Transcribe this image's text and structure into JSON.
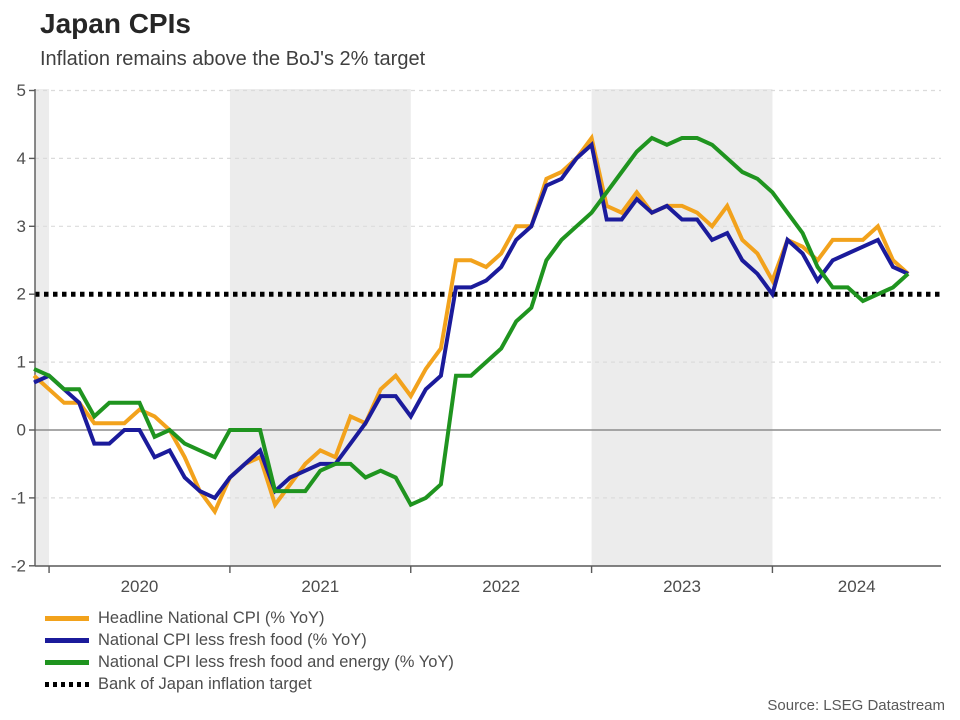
{
  "header": {
    "title": "Japan CPIs",
    "subtitle": "Inflation remains above the BoJ's 2% target"
  },
  "source": "Source: LSEG Datastream",
  "palette": {
    "headline_orange": "#F2A21C",
    "core_navy": "#1B1B9B",
    "corecore_green": "#1F941F",
    "target_black": "#000000",
    "shaded_band": "#ECECEC",
    "gridline": "#DBDBDB",
    "zero_line": "#8C8C8C",
    "axis_line": "#595959",
    "tick_text": "#4d4d4d"
  },
  "chart_data": {
    "type": "line",
    "title": "Japan CPIs",
    "subtitle": "Inflation remains above the BoJ's 2% target",
    "ylabel": "",
    "xlabel": "",
    "ylim": [
      -2,
      5
    ],
    "yticks": [
      -2,
      -1,
      0,
      1,
      2,
      3,
      4,
      5
    ],
    "grid": true,
    "legend_position": "bottom-left",
    "x": [
      "2019-12",
      "2020-01",
      "2020-02",
      "2020-03",
      "2020-04",
      "2020-05",
      "2020-06",
      "2020-07",
      "2020-08",
      "2020-09",
      "2020-10",
      "2020-11",
      "2020-12",
      "2021-01",
      "2021-02",
      "2021-03",
      "2021-04",
      "2021-05",
      "2021-06",
      "2021-07",
      "2021-08",
      "2021-09",
      "2021-10",
      "2021-11",
      "2021-12",
      "2022-01",
      "2022-02",
      "2022-03",
      "2022-04",
      "2022-05",
      "2022-06",
      "2022-07",
      "2022-08",
      "2022-09",
      "2022-10",
      "2022-11",
      "2022-12",
      "2023-01",
      "2023-02",
      "2023-03",
      "2023-04",
      "2023-05",
      "2023-06",
      "2023-07",
      "2023-08",
      "2023-09",
      "2023-10",
      "2023-11",
      "2023-12",
      "2024-01",
      "2024-02",
      "2024-03",
      "2024-04",
      "2024-05",
      "2024-06",
      "2024-07",
      "2024-08",
      "2024-09",
      "2024-10"
    ],
    "xticks_years": [
      2020,
      2021,
      2022,
      2023,
      2024
    ],
    "shaded_periods": [
      {
        "from": "2019-12",
        "to": "2020-01"
      },
      {
        "from": "2021-01",
        "to": "2022-01"
      },
      {
        "from": "2023-01",
        "to": "2024-01"
      }
    ],
    "series": [
      {
        "id": "headline",
        "name": "Headline National CPI (% YoY)",
        "color": "#F2A21C",
        "values": [
          0.8,
          0.6,
          0.4,
          0.4,
          0.1,
          0.1,
          0.1,
          0.3,
          0.2,
          0.0,
          -0.4,
          -0.9,
          -1.2,
          -0.7,
          -0.5,
          -0.4,
          -1.1,
          -0.8,
          -0.5,
          -0.3,
          -0.4,
          0.2,
          0.1,
          0.6,
          0.8,
          0.5,
          0.9,
          1.2,
          2.5,
          2.5,
          2.4,
          2.6,
          3.0,
          3.0,
          3.7,
          3.8,
          4.0,
          4.3,
          3.3,
          3.2,
          3.5,
          3.2,
          3.3,
          3.3,
          3.2,
          3.0,
          3.3,
          2.8,
          2.6,
          2.2,
          2.8,
          2.7,
          2.5,
          2.8,
          2.8,
          2.8,
          3.0,
          2.5,
          2.3
        ]
      },
      {
        "id": "core",
        "name": "National CPI less fresh food (% YoY)",
        "color": "#1B1B9B",
        "values": [
          0.7,
          0.8,
          0.6,
          0.4,
          -0.2,
          -0.2,
          0.0,
          0.0,
          -0.4,
          -0.3,
          -0.7,
          -0.9,
          -1.0,
          -0.7,
          -0.5,
          -0.3,
          -0.9,
          -0.7,
          -0.6,
          -0.5,
          -0.5,
          -0.2,
          0.1,
          0.5,
          0.5,
          0.2,
          0.6,
          0.8,
          2.1,
          2.1,
          2.2,
          2.4,
          2.8,
          3.0,
          3.6,
          3.7,
          4.0,
          4.2,
          3.1,
          3.1,
          3.4,
          3.2,
          3.3,
          3.1,
          3.1,
          2.8,
          2.9,
          2.5,
          2.3,
          2.0,
          2.8,
          2.6,
          2.2,
          2.5,
          2.6,
          2.7,
          2.8,
          2.4,
          2.3
        ]
      },
      {
        "id": "corecore",
        "name": "National CPI less fresh food and energy (% YoY)",
        "color": "#1F941F",
        "values": [
          0.9,
          0.8,
          0.6,
          0.6,
          0.2,
          0.4,
          0.4,
          0.4,
          -0.1,
          0.0,
          -0.2,
          -0.3,
          -0.4,
          0.0,
          0.0,
          0.0,
          -0.9,
          -0.9,
          -0.9,
          -0.6,
          -0.5,
          -0.5,
          -0.7,
          -0.6,
          -0.7,
          -1.1,
          -1.0,
          -0.8,
          0.8,
          0.8,
          1.0,
          1.2,
          1.6,
          1.8,
          2.5,
          2.8,
          3.0,
          3.2,
          3.5,
          3.8,
          4.1,
          4.3,
          4.2,
          4.3,
          4.3,
          4.2,
          4.0,
          3.8,
          3.7,
          3.5,
          3.2,
          2.9,
          2.4,
          2.1,
          2.1,
          1.9,
          2.0,
          2.1,
          2.3
        ]
      }
    ],
    "target": {
      "label": "Bank of Japan inflation target",
      "value": 2,
      "color": "#000000",
      "style": "dotted"
    }
  }
}
